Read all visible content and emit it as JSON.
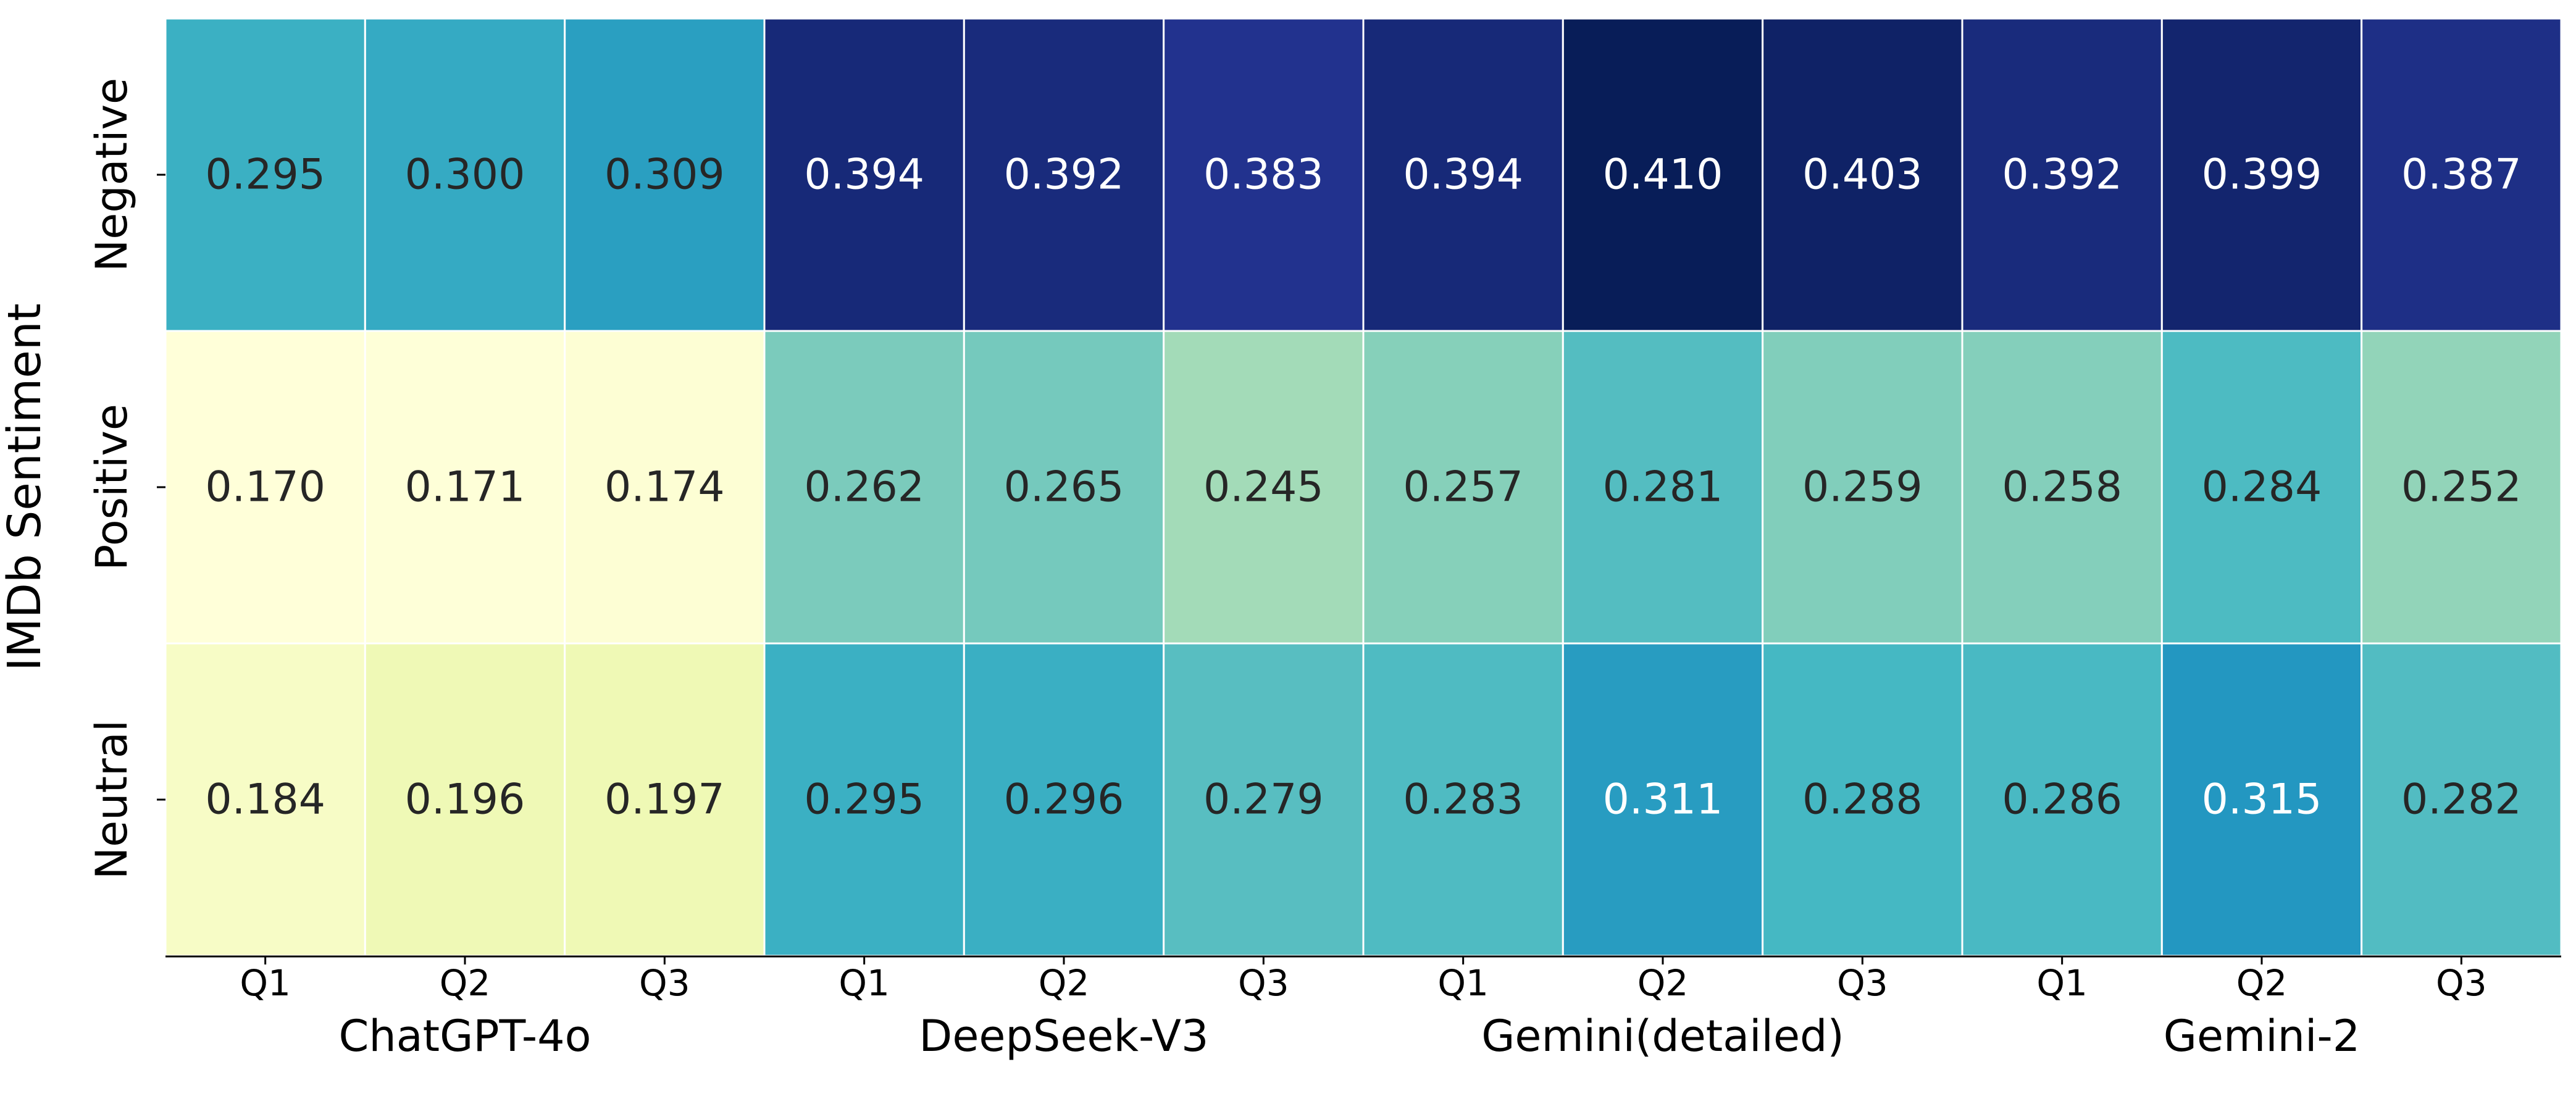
{
  "chart_data": {
    "type": "heatmap",
    "ylabel": "IMDb Sentiment",
    "rows": [
      "Negative",
      "Positive",
      "Neutral"
    ],
    "column_groups": [
      {
        "name": "ChatGPT-4o",
        "columns": [
          "Q1",
          "Q2",
          "Q3"
        ]
      },
      {
        "name": "DeepSeek-V3",
        "columns": [
          "Q1",
          "Q2",
          "Q3"
        ]
      },
      {
        "name": "Gemini(detailed)",
        "columns": [
          "Q1",
          "Q2",
          "Q3"
        ]
      },
      {
        "name": "Gemini-2",
        "columns": [
          "Q1",
          "Q2",
          "Q3"
        ]
      }
    ],
    "values": [
      [
        0.295,
        0.3,
        0.309,
        0.394,
        0.392,
        0.383,
        0.394,
        0.41,
        0.403,
        0.392,
        0.399,
        0.387
      ],
      [
        0.17,
        0.171,
        0.174,
        0.262,
        0.265,
        0.245,
        0.257,
        0.281,
        0.259,
        0.258,
        0.284,
        0.252
      ],
      [
        0.184,
        0.196,
        0.197,
        0.295,
        0.296,
        0.279,
        0.283,
        0.311,
        0.288,
        0.286,
        0.315,
        0.282
      ]
    ],
    "value_format": "0.000",
    "colormap": "YlGnBu",
    "color_range": [
      0.17,
      0.41
    ],
    "colorbar": false,
    "cell_border_color": "#ffffff"
  }
}
